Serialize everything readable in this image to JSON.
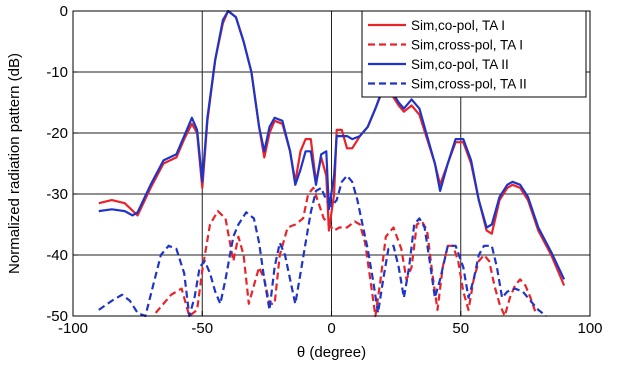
{
  "chart_data": {
    "type": "line",
    "xlabel": "θ (degree)",
    "ylabel": "Normalized radiation pattern (dB)",
    "xlim": [
      -100,
      100
    ],
    "ylim": [
      -50,
      0
    ],
    "xticks": [
      -100,
      -50,
      0,
      50,
      100
    ],
    "yticks": [
      0,
      -10,
      -20,
      -30,
      -40,
      -50
    ],
    "xtick_labels": [
      "-100",
      "-50",
      "0",
      "50",
      "100"
    ],
    "ytick_labels": [
      "0",
      "-10",
      "-20",
      "-30",
      "-40",
      "-50"
    ],
    "grid": "vertical and horizontal lines at major ticks",
    "legend_position": "top-right",
    "series": [
      {
        "name": "Sim,co-pol, TA I",
        "color": "#e8242a",
        "dash": "solid",
        "points": [
          [
            -90,
            -31.5
          ],
          [
            -85,
            -31
          ],
          [
            -80,
            -31.5
          ],
          [
            -75,
            -33.5
          ],
          [
            -70,
            -29
          ],
          [
            -65,
            -25
          ],
          [
            -60,
            -24
          ],
          [
            -57,
            -21
          ],
          [
            -54,
            -18.5
          ],
          [
            -52,
            -20
          ],
          [
            -50,
            -29
          ],
          [
            -48,
            -18
          ],
          [
            -45,
            -8
          ],
          [
            -42,
            -2
          ],
          [
            -40,
            0
          ],
          [
            -37,
            -1
          ],
          [
            -34,
            -5
          ],
          [
            -31,
            -10
          ],
          [
            -28,
            -19
          ],
          [
            -26,
            -24
          ],
          [
            -24,
            -20
          ],
          [
            -22,
            -18
          ],
          [
            -19,
            -18.5
          ],
          [
            -16,
            -23
          ],
          [
            -14,
            -28
          ],
          [
            -12,
            -23
          ],
          [
            -10,
            -21
          ],
          [
            -8,
            -21
          ],
          [
            -6,
            -28
          ],
          [
            -4,
            -24
          ],
          [
            -2,
            -27
          ],
          [
            -1,
            -36
          ],
          [
            1,
            -30
          ],
          [
            2,
            -19.5
          ],
          [
            4,
            -19.5
          ],
          [
            6,
            -22.5
          ],
          [
            8,
            -22.5
          ],
          [
            11,
            -20.5
          ],
          [
            14,
            -19
          ],
          [
            17,
            -16
          ],
          [
            20,
            -12.8
          ],
          [
            23,
            -13.5
          ],
          [
            26,
            -15.5
          ],
          [
            28,
            -16.5
          ],
          [
            31,
            -15.5
          ],
          [
            34,
            -17
          ],
          [
            37,
            -21
          ],
          [
            40,
            -25
          ],
          [
            42,
            -28.5
          ],
          [
            45,
            -25
          ],
          [
            48,
            -21.5
          ],
          [
            51,
            -21.5
          ],
          [
            54,
            -25
          ],
          [
            57,
            -31
          ],
          [
            60,
            -36
          ],
          [
            62,
            -36.5
          ],
          [
            65,
            -31
          ],
          [
            68,
            -29
          ],
          [
            70,
            -28.5
          ],
          [
            73,
            -29
          ],
          [
            76,
            -31
          ],
          [
            80,
            -36
          ],
          [
            85,
            -40
          ],
          [
            90,
            -45
          ]
        ]
      },
      {
        "name": "Sim,cross-pol, TA I",
        "color": "#e8242a",
        "dash": "dashed",
        "points": [
          [
            -68,
            -49.5
          ],
          [
            -62,
            -46.5
          ],
          [
            -58,
            -45.5
          ],
          [
            -55,
            -50
          ],
          [
            -52,
            -49
          ],
          [
            -50,
            -42.5
          ],
          [
            -47,
            -35
          ],
          [
            -44,
            -32.8
          ],
          [
            -41,
            -34
          ],
          [
            -38,
            -41
          ],
          [
            -36,
            -37
          ],
          [
            -34,
            -40
          ],
          [
            -32,
            -48
          ],
          [
            -30,
            -45
          ],
          [
            -28,
            -42
          ],
          [
            -26,
            -44
          ],
          [
            -24,
            -48
          ],
          [
            -22,
            -48
          ],
          [
            -20,
            -40
          ],
          [
            -17,
            -35.5
          ],
          [
            -14,
            -35
          ],
          [
            -11,
            -34
          ],
          [
            -9,
            -30
          ],
          [
            -7,
            -29
          ],
          [
            -5,
            -31.5
          ],
          [
            -3,
            -34
          ],
          [
            -1,
            -35
          ],
          [
            1,
            -36
          ],
          [
            3,
            -35.5
          ],
          [
            6,
            -35.5
          ],
          [
            9,
            -34.5
          ],
          [
            11,
            -35
          ],
          [
            13,
            -38
          ],
          [
            15,
            -44
          ],
          [
            17,
            -50
          ],
          [
            19,
            -44
          ],
          [
            21,
            -37
          ],
          [
            24,
            -35.5
          ],
          [
            27,
            -39
          ],
          [
            29,
            -44
          ],
          [
            31,
            -42
          ],
          [
            33,
            -35
          ],
          [
            35,
            -34.5
          ],
          [
            37,
            -36
          ],
          [
            39,
            -43
          ],
          [
            41,
            -49
          ],
          [
            43,
            -42
          ],
          [
            45,
            -38.5
          ],
          [
            47,
            -38.5
          ],
          [
            49,
            -41
          ],
          [
            51,
            -46
          ],
          [
            53,
            -49
          ],
          [
            55,
            -44
          ],
          [
            57,
            -41
          ],
          [
            59,
            -40
          ],
          [
            61,
            -41
          ],
          [
            63,
            -45
          ],
          [
            65,
            -48
          ],
          [
            67,
            -50
          ],
          [
            69,
            -47
          ],
          [
            71,
            -45
          ],
          [
            73,
            -44
          ],
          [
            75,
            -45
          ],
          [
            77,
            -47
          ],
          [
            79,
            -49.5
          ]
        ]
      },
      {
        "name": "Sim,co-pol, TA II",
        "color": "#1f35c8",
        "dash": "solid",
        "points": [
          [
            -90,
            -32.8
          ],
          [
            -85,
            -32.5
          ],
          [
            -80,
            -32.8
          ],
          [
            -77,
            -33.5
          ],
          [
            -75,
            -33
          ],
          [
            -70,
            -28.5
          ],
          [
            -65,
            -24.5
          ],
          [
            -60,
            -23.5
          ],
          [
            -57,
            -20.5
          ],
          [
            -54,
            -17.5
          ],
          [
            -52,
            -19.5
          ],
          [
            -50,
            -28
          ],
          [
            -48,
            -17.5
          ],
          [
            -45,
            -8
          ],
          [
            -42,
            -1.5
          ],
          [
            -40,
            0
          ],
          [
            -37,
            -1
          ],
          [
            -34,
            -5
          ],
          [
            -31,
            -10
          ],
          [
            -28,
            -19
          ],
          [
            -26,
            -23
          ],
          [
            -24,
            -19
          ],
          [
            -22,
            -17.5
          ],
          [
            -19,
            -18
          ],
          [
            -16,
            -23
          ],
          [
            -14,
            -28.5
          ],
          [
            -12,
            -26
          ],
          [
            -10,
            -23
          ],
          [
            -8,
            -23
          ],
          [
            -6,
            -28.5
          ],
          [
            -4,
            -23.5
          ],
          [
            -2,
            -23
          ],
          [
            -1,
            -32.5
          ],
          [
            1,
            -27
          ],
          [
            2,
            -20.5
          ],
          [
            4,
            -20.5
          ],
          [
            6,
            -20.5
          ],
          [
            8,
            -21
          ],
          [
            11,
            -20.5
          ],
          [
            14,
            -19
          ],
          [
            17,
            -16
          ],
          [
            20,
            -12.5
          ],
          [
            23,
            -13
          ],
          [
            26,
            -15
          ],
          [
            28,
            -16
          ],
          [
            31,
            -14.5
          ],
          [
            34,
            -16
          ],
          [
            37,
            -20.5
          ],
          [
            40,
            -25
          ],
          [
            42,
            -29.5
          ],
          [
            45,
            -25
          ],
          [
            48,
            -21
          ],
          [
            51,
            -21
          ],
          [
            54,
            -24.5
          ],
          [
            57,
            -31
          ],
          [
            60,
            -35.5
          ],
          [
            62,
            -35
          ],
          [
            65,
            -30.5
          ],
          [
            68,
            -28.5
          ],
          [
            70,
            -28
          ],
          [
            73,
            -28.5
          ],
          [
            76,
            -30.5
          ],
          [
            80,
            -35.5
          ],
          [
            85,
            -39.5
          ],
          [
            90,
            -44
          ]
        ]
      },
      {
        "name": "Sim,cross-pol, TA II",
        "color": "#1f35c8",
        "dash": "dashed",
        "points": [
          [
            -90,
            -49
          ],
          [
            -85,
            -47.5
          ],
          [
            -81,
            -46.5
          ],
          [
            -78,
            -47.5
          ],
          [
            -75,
            -49.5
          ],
          [
            -72,
            -50
          ],
          [
            -69,
            -45
          ],
          [
            -66,
            -40
          ],
          [
            -63,
            -38.5
          ],
          [
            -60,
            -39
          ],
          [
            -57,
            -43
          ],
          [
            -55,
            -50
          ],
          [
            -53,
            -47
          ],
          [
            -51,
            -42
          ],
          [
            -49,
            -41
          ],
          [
            -47,
            -43
          ],
          [
            -45,
            -46
          ],
          [
            -43,
            -48
          ],
          [
            -41,
            -44
          ],
          [
            -38,
            -37
          ],
          [
            -36,
            -35
          ],
          [
            -33,
            -33
          ],
          [
            -30,
            -34
          ],
          [
            -28,
            -38
          ],
          [
            -26,
            -44
          ],
          [
            -24,
            -49
          ],
          [
            -22,
            -42
          ],
          [
            -20,
            -38
          ],
          [
            -18,
            -40
          ],
          [
            -16,
            -44
          ],
          [
            -14,
            -48
          ],
          [
            -12,
            -43
          ],
          [
            -10,
            -38
          ],
          [
            -8,
            -33
          ],
          [
            -6,
            -29.5
          ],
          [
            -4,
            -29
          ],
          [
            -2,
            -31
          ],
          [
            0,
            -32
          ],
          [
            2,
            -31
          ],
          [
            4,
            -28
          ],
          [
            6,
            -27
          ],
          [
            8,
            -28
          ],
          [
            10,
            -31
          ],
          [
            12,
            -35
          ],
          [
            14,
            -39
          ],
          [
            16,
            -44
          ],
          [
            18,
            -49.5
          ],
          [
            20,
            -44
          ],
          [
            22,
            -39
          ],
          [
            24,
            -38.5
          ],
          [
            26,
            -42
          ],
          [
            28,
            -47
          ],
          [
            30,
            -42
          ],
          [
            32,
            -35
          ],
          [
            34,
            -34
          ],
          [
            36,
            -35.5
          ],
          [
            38,
            -41
          ],
          [
            40,
            -47
          ],
          [
            42,
            -44
          ],
          [
            45,
            -38.5
          ],
          [
            48,
            -38.5
          ],
          [
            51,
            -42
          ],
          [
            53,
            -47
          ],
          [
            55,
            -44
          ],
          [
            57,
            -40
          ],
          [
            59,
            -38.5
          ],
          [
            62,
            -38.5
          ],
          [
            64,
            -42
          ],
          [
            66,
            -47
          ],
          [
            68,
            -46
          ],
          [
            71,
            -45.5
          ],
          [
            74,
            -46
          ],
          [
            77,
            -47.5
          ],
          [
            80,
            -49
          ],
          [
            83,
            -50
          ]
        ]
      }
    ]
  }
}
